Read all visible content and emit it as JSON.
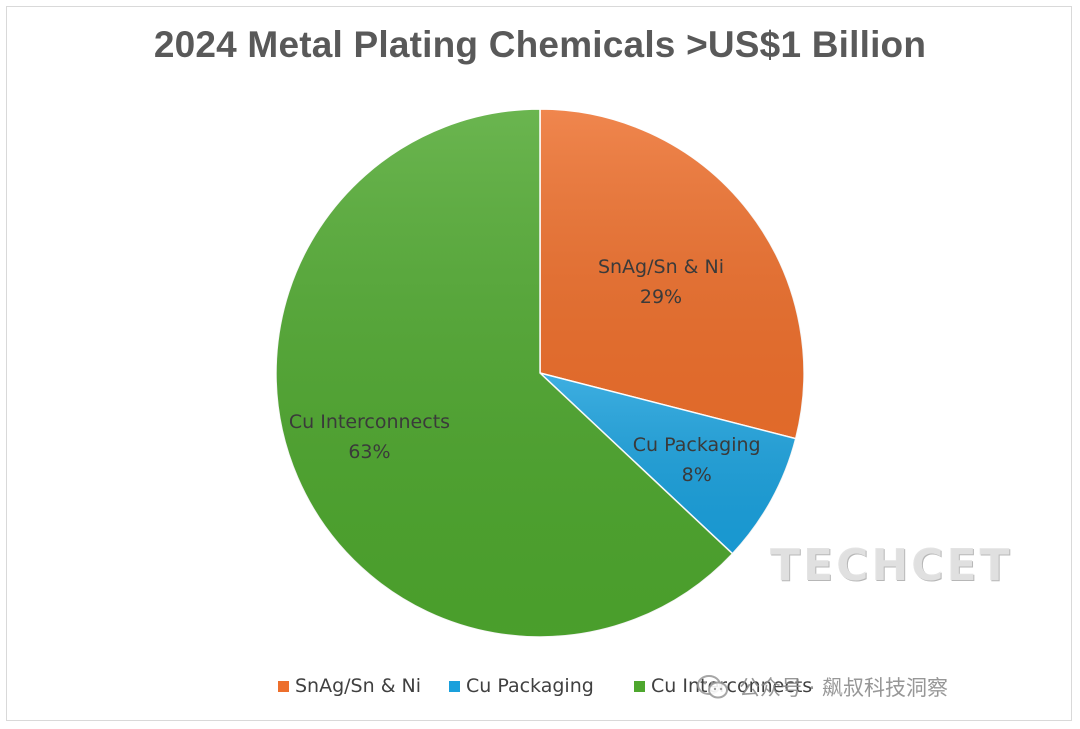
{
  "chart_data": {
    "type": "pie",
    "title": "2024 Metal Plating Chemicals >US$1 Billion",
    "slices": [
      {
        "label": "SnAg/Sn & Ni",
        "value": 29,
        "value_label": "29%",
        "color": "#ed6f2c"
      },
      {
        "label": "Cu Packaging",
        "value": 8,
        "value_label": "8%",
        "color": "#1aa0dc"
      },
      {
        "label": "Cu Interconnects",
        "value": 63,
        "value_label": "63%",
        "color": "#4ea72e"
      }
    ],
    "start_angle_deg": 0,
    "direction": "clockwise",
    "legend_position": "bottom"
  },
  "legend": {
    "items": [
      {
        "label": "SnAg/Sn & Ni",
        "color": "#ed6f2c"
      },
      {
        "label": "Cu Packaging",
        "color": "#1aa0dc"
      },
      {
        "label": "Cu Interconnects",
        "color": "#4ea72e"
      }
    ]
  },
  "watermark": {
    "logo_text": "TECHCET",
    "wechat_text": "公众号 · 飙叔科技洞察"
  }
}
